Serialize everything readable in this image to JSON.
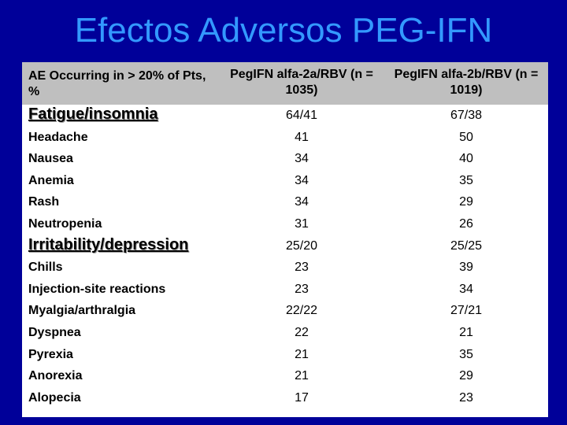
{
  "title": "Efectos Adversos PEG-IFN",
  "table": {
    "header": {
      "label": "AE Occurring in > 20% of Pts, %",
      "col1": "PegIFN alfa-2a/RBV (n = 1035)",
      "col2": "PegIFN alfa-2b/RBV (n = 1019)"
    },
    "rows": [
      {
        "label": "Fatigue/insomnia",
        "v1": "64/41",
        "v2": "67/38"
      },
      {
        "label": "Headache",
        "v1": "41",
        "v2": "50"
      },
      {
        "label": "Nausea",
        "v1": "34",
        "v2": "40"
      },
      {
        "label": "Anemia",
        "v1": "34",
        "v2": "35"
      },
      {
        "label": "Rash",
        "v1": "34",
        "v2": "29"
      },
      {
        "label": "Neutropenia",
        "v1": "31",
        "v2": "26"
      },
      {
        "label": "Irritability/depression",
        "v1": "25/20",
        "v2": "25/25"
      },
      {
        "label": "Chills",
        "v1": "23",
        "v2": "39"
      },
      {
        "label": "Injection-site reactions",
        "v1": "23",
        "v2": "34"
      },
      {
        "label": "Myalgia/arthralgia",
        "v1": "22/22",
        "v2": "27/21"
      },
      {
        "label": "Dyspnea",
        "v1": "22",
        "v2": "21"
      },
      {
        "label": "Pyrexia",
        "v1": "21",
        "v2": "35"
      },
      {
        "label": "Anorexia",
        "v1": "21",
        "v2": "29"
      },
      {
        "label": "Alopecia",
        "v1": "17",
        "v2": "23"
      }
    ]
  }
}
